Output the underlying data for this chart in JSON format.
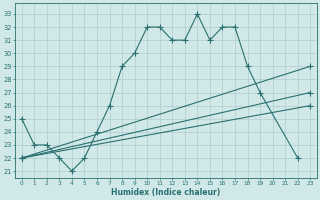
{
  "xlabel": "Humidex (Indice chaleur)",
  "background_color": "#d0e8e8",
  "grid_color": "#b0cccc",
  "line_color": "#2a7070",
  "xlim": [
    -0.5,
    23.5
  ],
  "ylim": [
    20.5,
    33.8
  ],
  "xticks": [
    0,
    1,
    2,
    3,
    4,
    5,
    6,
    7,
    8,
    9,
    10,
    11,
    12,
    13,
    14,
    15,
    16,
    17,
    18,
    19,
    20,
    21,
    22,
    23
  ],
  "yticks": [
    21,
    22,
    23,
    24,
    25,
    26,
    27,
    28,
    29,
    30,
    31,
    32,
    33
  ],
  "series1_x": [
    0,
    1,
    2,
    3,
    4,
    5,
    6,
    7,
    8,
    9,
    10,
    11,
    12,
    13,
    14,
    15,
    16,
    17,
    18,
    19,
    22
  ],
  "series1_y": [
    25,
    23,
    23,
    22,
    21,
    22,
    24,
    26,
    29,
    30,
    32,
    32,
    31,
    31,
    33,
    31,
    32,
    32,
    29,
    27,
    22
  ],
  "series2_x": [
    0,
    23
  ],
  "series2_y": [
    22,
    29
  ],
  "series3_x": [
    0,
    23
  ],
  "series3_y": [
    22,
    27
  ],
  "series4_x": [
    0,
    23
  ],
  "series4_y": [
    22,
    26
  ]
}
